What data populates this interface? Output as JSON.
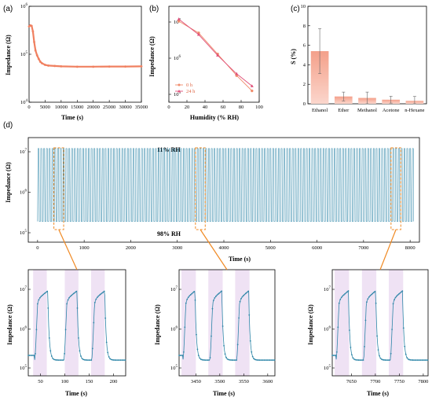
{
  "chart_data": [
    {
      "panel": "(a)",
      "type": "line",
      "xlabel": "Time (s)",
      "ylabel": "Impedance (Ω)",
      "y_scale": "log",
      "xlim": [
        0,
        35000
      ],
      "ylim_exp": [
        4,
        6
      ],
      "x_ticks": [
        "0",
        "5000",
        "10000",
        "15000",
        "20000",
        "25000",
        "30000",
        "35000"
      ],
      "y_ticks": [
        "10^4",
        "10^5",
        "10^6"
      ],
      "series": [
        {
          "color": "#f08060",
          "x": [
            0,
            400,
            800,
            1200,
            1600,
            2000,
            2500,
            3000,
            3500,
            4000,
            5000,
            6000,
            8000,
            10000,
            15000,
            20000,
            25000,
            30000,
            35000
          ],
          "y": [
            380000,
            400000,
            390000,
            300000,
            180000,
            120000,
            95000,
            80000,
            70000,
            65000,
            60000,
            58000,
            57000,
            56000,
            55000,
            55000,
            55500,
            55500,
            56000
          ]
        }
      ]
    },
    {
      "panel": "(b)",
      "type": "line",
      "xlabel": "Humidity (% RH)",
      "ylabel": "Impedance (Ω)",
      "y_scale": "log",
      "xlim": [
        0,
        100
      ],
      "ylim_exp": [
        5,
        7
      ],
      "x_ticks": [
        "0",
        "20",
        "40",
        "60",
        "80",
        "100"
      ],
      "y_ticks": [
        "10^5",
        "10^6",
        "10^7"
      ],
      "legend_position": "lower-left",
      "series": [
        {
          "name": "0 h",
          "color": "#f08c6c",
          "marker": "circle",
          "x": [
            11,
            33,
            54,
            75,
            92
          ],
          "y": [
            10500000,
            5000000,
            1300000,
            330000,
            125000
          ]
        },
        {
          "name": "24 h",
          "color": "#e0507a",
          "marker": "triangle",
          "x": [
            11,
            33,
            54,
            75,
            92
          ],
          "y": [
            12000000,
            4500000,
            1200000,
            370000,
            170000
          ]
        }
      ]
    },
    {
      "panel": "(c)",
      "type": "bar",
      "ylabel": "S (%)",
      "ylim": [
        0,
        10
      ],
      "y_ticks": [
        "0",
        "2",
        "4",
        "6",
        "8",
        "10"
      ],
      "categories": [
        "Ethanol",
        "Ether",
        "Methanol",
        "Acetone",
        "n-Hexane"
      ],
      "values": [
        5.4,
        0.75,
        0.6,
        0.42,
        0.3
      ],
      "errors": [
        2.3,
        0.45,
        0.6,
        0.35,
        0.45
      ]
    },
    {
      "panel": "(d)",
      "type": "line",
      "xlabel": "Time (s)",
      "ylabel": "Impedance (Ω)",
      "y_scale": "log",
      "xlim": [
        -200,
        8200
      ],
      "ylim_exp": [
        5,
        7
      ],
      "x_ticks": [
        "0",
        "1000",
        "2000",
        "3000",
        "4000",
        "5000",
        "6000",
        "7000",
        "8000"
      ],
      "y_ticks": [
        "10^5",
        "10^6",
        "10^7"
      ],
      "annotations": [
        "11% RH",
        "98% RH"
      ],
      "cycle": {
        "period_s": 60,
        "low": 190000,
        "high": 12000000
      },
      "zoom_windows": [
        [
          350,
          560
        ],
        [
          3390,
          3600
        ],
        [
          7590,
          7800
        ]
      ]
    },
    {
      "panel": "zoom-1",
      "type": "line",
      "xlabel": "Time (s)",
      "ylabel": "Impedance (Ω)",
      "y_scale": "log",
      "xlim": [
        25,
        225
      ],
      "x_ticks": [
        "50",
        "100",
        "150",
        "200"
      ],
      "x_tick_values": [
        50,
        100,
        150,
        200
      ],
      "y_ticks": [
        "10^5",
        "10^6",
        "10^7"
      ],
      "shaded": [
        [
          35,
          63
        ],
        [
          100,
          128
        ],
        [
          154,
          182
        ]
      ],
      "rise_starts": [
        38,
        98,
        155
      ]
    },
    {
      "panel": "zoom-2",
      "type": "line",
      "xlabel": "Time (s)",
      "ylabel": "Impedance (Ω)",
      "y_scale": "log",
      "xlim": [
        3415,
        3615
      ],
      "x_ticks": [
        "3450",
        "3500",
        "3550",
        "3600"
      ],
      "x_tick_values": [
        3450,
        3500,
        3550,
        3600
      ],
      "y_ticks": [
        "10^5",
        "10^6",
        "10^7"
      ],
      "shaded": [
        [
          3420,
          3450
        ],
        [
          3476,
          3506
        ],
        [
          3532,
          3562
        ]
      ],
      "rise_starts": [
        3423,
        3479,
        3535
      ]
    },
    {
      "panel": "zoom-3",
      "type": "line",
      "xlabel": "Time (s)",
      "ylabel": "Impedance (Ω)",
      "y_scale": "log",
      "xlim": [
        7610,
        7810
      ],
      "x_ticks": [
        "7650",
        "7700",
        "7750",
        "7800"
      ],
      "x_tick_values": [
        7650,
        7700,
        7750,
        7800
      ],
      "y_ticks": [
        "10^5",
        "10^6",
        "10^7"
      ],
      "shaded": [
        [
          7615,
          7645
        ],
        [
          7672,
          7702
        ],
        [
          7728,
          7758
        ]
      ],
      "rise_starts": [
        7618,
        7675,
        7731
      ]
    }
  ]
}
